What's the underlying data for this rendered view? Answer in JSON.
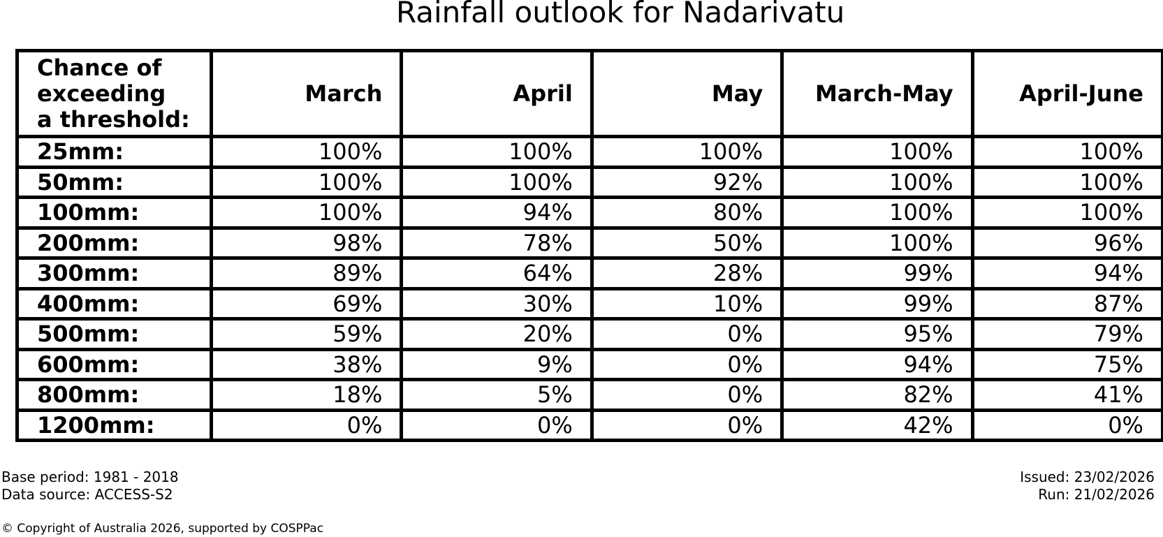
{
  "title": "Rainfall outlook for Nadarivatu",
  "chart_data": {
    "type": "table",
    "title": "Rainfall outlook for Nadarivatu",
    "corner_header": "Chance of exceeding a threshold:",
    "corner_lines": [
      "Chance of",
      "exceeding",
      "a threshold:"
    ],
    "columns": [
      "March",
      "April",
      "May",
      "March-May",
      "April-June"
    ],
    "rows": [
      {
        "label": "25mm:",
        "values": [
          "100%",
          "100%",
          "100%",
          "100%",
          "100%"
        ]
      },
      {
        "label": "50mm:",
        "values": [
          "100%",
          "100%",
          "92%",
          "100%",
          "100%"
        ]
      },
      {
        "label": "100mm:",
        "values": [
          "100%",
          "94%",
          "80%",
          "100%",
          "100%"
        ]
      },
      {
        "label": "200mm:",
        "values": [
          "98%",
          "78%",
          "50%",
          "100%",
          "96%"
        ]
      },
      {
        "label": "300mm:",
        "values": [
          "89%",
          "64%",
          "28%",
          "99%",
          "94%"
        ]
      },
      {
        "label": "400mm:",
        "values": [
          "69%",
          "30%",
          "10%",
          "99%",
          "87%"
        ]
      },
      {
        "label": "500mm:",
        "values": [
          "59%",
          "20%",
          "0%",
          "95%",
          "79%"
        ]
      },
      {
        "label": "600mm:",
        "values": [
          "38%",
          "9%",
          "0%",
          "94%",
          "75%"
        ]
      },
      {
        "label": "800mm:",
        "values": [
          "18%",
          "5%",
          "0%",
          "82%",
          "41%"
        ]
      },
      {
        "label": "1200mm:",
        "values": [
          "0%",
          "0%",
          "0%",
          "42%",
          "0%"
        ]
      }
    ],
    "units": "percent chance of exceeding rainfall threshold",
    "colors": {
      "text": "#000000",
      "border": "#000000",
      "background": "#ffffff"
    }
  },
  "footer": {
    "base_period": "Base period: 1981 - 2018",
    "data_source": "Data source: ACCESS-S2",
    "issued": "Issued: 23/02/2026",
    "run": "Run: 21/02/2026",
    "copyright": "© Copyright of Australia 2026, supported by COSPPac"
  }
}
